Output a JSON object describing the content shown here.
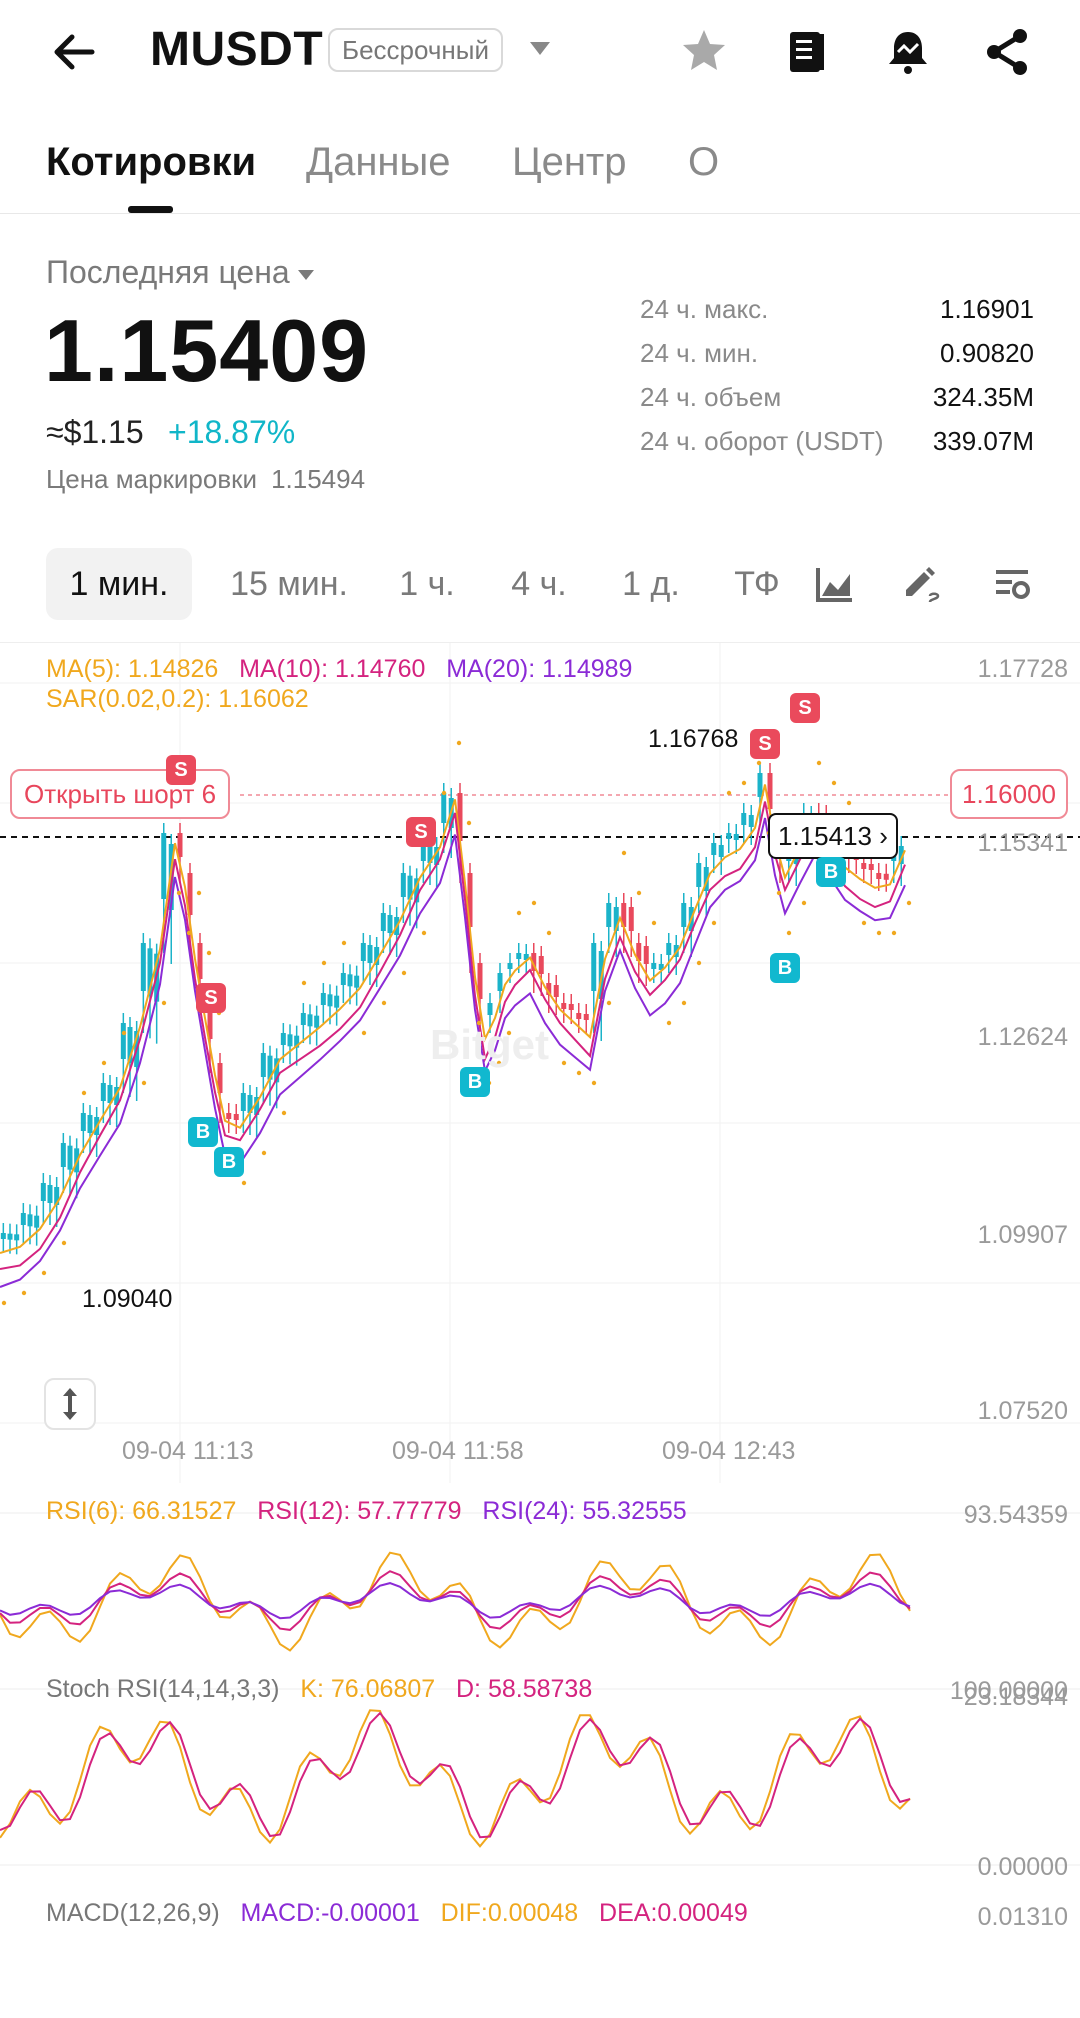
{
  "header": {
    "title": "MUSDT",
    "badge": "Бессрочный"
  },
  "tabs": [
    {
      "label": "Котировки",
      "active": true
    },
    {
      "label": "Данные",
      "active": false
    },
    {
      "label": "Центр",
      "active": false
    },
    {
      "label": "О",
      "active": false
    }
  ],
  "price": {
    "label": "Последняя цена",
    "last": "1.15409",
    "usd": "≈$1.15",
    "change": "+18.87%",
    "mark_label": "Цена маркировки",
    "mark_value": "1.15494"
  },
  "stats": [
    {
      "label": "24 ч. макс.",
      "value": "1.16901"
    },
    {
      "label": "24 ч. мин.",
      "value": "0.90820"
    },
    {
      "label": "24 ч. объем",
      "value": "324.35M"
    },
    {
      "label": "24 ч. оборот (USDT)",
      "value": "339.07M"
    }
  ],
  "intervals": [
    {
      "label": "1 мин.",
      "active": true
    },
    {
      "label": "15 мин.",
      "active": false
    },
    {
      "label": "1 ч.",
      "active": false
    },
    {
      "label": "4 ч.",
      "active": false
    },
    {
      "label": "1 д.",
      "active": false
    },
    {
      "label": "ТФ",
      "active": false
    }
  ],
  "chart": {
    "ma5": "MA(5): 1.14826",
    "ma10": "MA(10): 1.14760",
    "ma20": "MA(20): 1.14989",
    "sar": "SAR(0.02,0.2): 1.16062",
    "y_axis": [
      "1.17728",
      "1.15341",
      "1.12624",
      "1.09907",
      "1.07520"
    ],
    "order_tag": "Открыть шорт 6",
    "order_price": "1.16000",
    "current_price": "1.15413",
    "high_label": "1.16768",
    "low_label": "1.09040",
    "times": [
      "09-04 11:13",
      "09-04 11:58",
      "09-04 12:43"
    ],
    "watermark": "Bitget",
    "signal_s": "S",
    "signal_b": "B"
  },
  "rsi": {
    "rsi6": "RSI(6): 66.31527",
    "rsi12": "RSI(12): 57.77779",
    "rsi24": "RSI(24): 55.32555",
    "axis_top": "93.54359",
    "axis_bottom": "23.18344"
  },
  "stoch": {
    "title": "Stoch RSI(14,14,3,3)",
    "k": "K: 76.06807",
    "d": "D: 58.58738",
    "axis_top": "100.00000",
    "axis_bottom": "0.00000"
  },
  "macd": {
    "title": "MACD(12,26,9)",
    "macd": "MACD:-0.00001",
    "dif": "DIF:0.00048",
    "dea": "DEA:0.00049",
    "axis_top": "0.01310"
  },
  "colors": {
    "up": "#1bb3c9",
    "down": "#e9495c",
    "ma5": "#f0a81e",
    "ma10": "#d4237f",
    "ma20": "#8b2bd6"
  }
}
